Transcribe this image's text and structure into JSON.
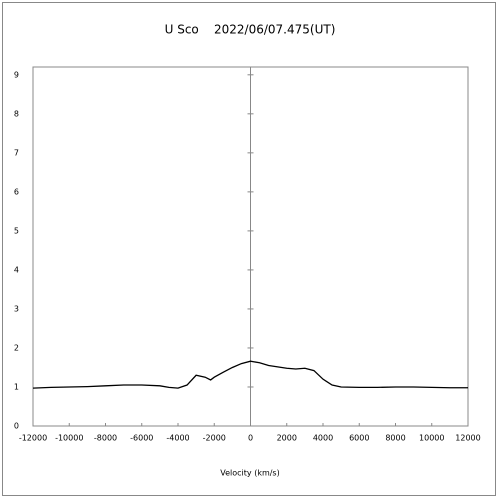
{
  "chart_data": {
    "type": "line",
    "title": "U Sco    2022/06/07.475(UT)",
    "x_label": "Velocity (km/s)",
    "x": [
      -12000,
      -11000,
      -10000,
      -9000,
      -8000,
      -7000,
      -6000,
      -5000,
      -4500,
      -4000,
      -3500,
      -3000,
      -2500,
      -2200,
      -2000,
      -1500,
      -1000,
      -500,
      0,
      500,
      1000,
      2000,
      2500,
      3000,
      3500,
      4000,
      4500,
      5000,
      6000,
      7000,
      8000,
      9000,
      10000,
      11000,
      12000
    ],
    "series": [
      {
        "color": "#000000",
        "values": [
          0.97,
          0.99,
          1.0,
          1.01,
          1.03,
          1.05,
          1.05,
          1.03,
          0.99,
          0.97,
          1.05,
          1.3,
          1.25,
          1.18,
          1.25,
          1.38,
          1.5,
          1.6,
          1.66,
          1.62,
          1.55,
          1.48,
          1.46,
          1.48,
          1.42,
          1.2,
          1.05,
          1.0,
          0.99,
          0.99,
          1.0,
          1.0,
          0.99,
          0.98,
          0.98
        ]
      }
    ],
    "xlim": [
      -12000,
      12000
    ],
    "xticks": [
      -12000,
      -10000,
      -8000,
      -6000,
      -4000,
      -2000,
      0,
      2000,
      4000,
      6000,
      8000,
      10000,
      12000
    ],
    "ylim": [
      0,
      9.2
    ],
    "yticks": [
      0,
      1,
      2,
      3,
      4,
      5,
      6,
      7,
      8,
      9
    ]
  }
}
